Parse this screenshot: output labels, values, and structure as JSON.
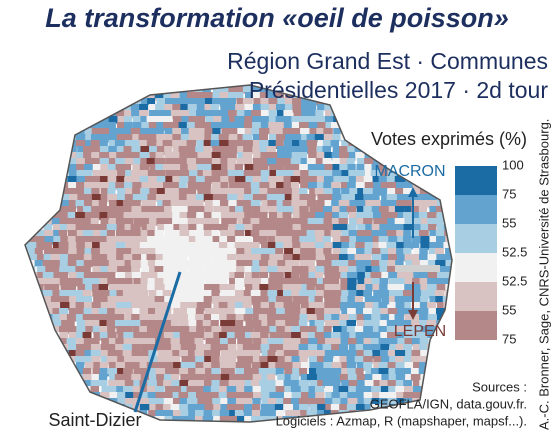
{
  "title": "La transformation «oeil de poisson»",
  "subtitle": [
    "Région Grand Est · Communes",
    "Présidentielles 2017 · 2d tour"
  ],
  "legend": {
    "title": "Votes exprimés (%)",
    "top_label": "MACRON",
    "bottom_label": "LEPEN",
    "labels": [
      "100",
      "75",
      "55",
      "52.5",
      "52.5",
      "55",
      "75"
    ],
    "colors": [
      "#1b6ca5",
      "#62a3cf",
      "#a8cee3",
      "#f1f1f1",
      "#d8c2c2",
      "#b48888"
    ]
  },
  "place_label": "Saint-Dizier",
  "sources": [
    "Sources :",
    "GEOFLA/IGN, data.gouv.fr.",
    "Logiciels : Azmap, R (mapshaper, mapsf...)."
  ],
  "credit": "A.-C. Bronner, Sage, CNRS-Université de Strasbourg."
}
